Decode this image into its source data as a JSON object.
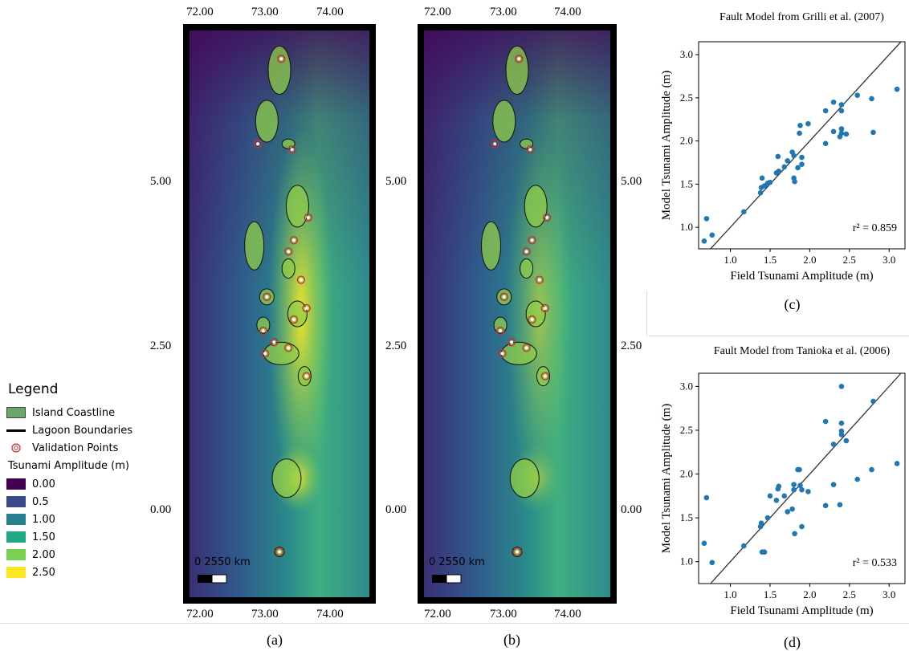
{
  "legend": {
    "title": "Legend",
    "items": [
      {
        "label": "Island Coastline",
        "color": "#6aa86a"
      },
      {
        "label": "Lagoon Boundaries",
        "color": "#000000"
      },
      {
        "label": "Validation Points",
        "color": "#d62728"
      }
    ],
    "scale_title": "Tsunami Amplitude (m)",
    "scale": [
      {
        "label": "0.00",
        "color": "#440154"
      },
      {
        "label": "0.5",
        "color": "#3b4a8a"
      },
      {
        "label": "1.00",
        "color": "#26808e"
      },
      {
        "label": "1.50",
        "color": "#22a884"
      },
      {
        "label": "2.00",
        "color": "#7ad151"
      },
      {
        "label": "2.50",
        "color": "#fde725"
      }
    ]
  },
  "maps": [
    {
      "label": "(a)",
      "lon_ticks": [
        "72.00",
        "73.00",
        "74.00"
      ],
      "lat_ticks": [
        "5.00",
        "2.50",
        "0.00"
      ],
      "scalebar": "0 2550 km"
    },
    {
      "label": "(b)",
      "lon_ticks": [
        "72.00",
        "73.00",
        "74.00"
      ],
      "lat_ticks_left": [
        "5.00",
        "2.50",
        "0.00"
      ],
      "lat_ticks_right": [
        "5.00",
        "2.50",
        "0.00"
      ],
      "scalebar": "0 2550 km"
    }
  ],
  "chart_data": [
    {
      "type": "scatter",
      "title": "Fault Model from Grilli et al. (2007)",
      "xlabel": "Field Tsunami Amplitude (m)",
      "ylabel": "Model Tsunami Amplitude (m)",
      "panel_label": "(c)",
      "annotation": "r² = 0.859",
      "xlim": [
        0.6,
        3.2
      ],
      "ylim": [
        0.75,
        3.15
      ],
      "xticks": [
        "1.0",
        "1.5",
        "2.0",
        "2.5",
        "3.0"
      ],
      "yticks": [
        "1.0",
        "1.5",
        "2.0",
        "2.5",
        "3.0"
      ],
      "marker_color": "#1f77b4",
      "points": [
        [
          0.67,
          0.84
        ],
        [
          0.7,
          1.1
        ],
        [
          0.77,
          0.91
        ],
        [
          1.17,
          1.18
        ],
        [
          1.38,
          1.4
        ],
        [
          1.39,
          1.46
        ],
        [
          1.4,
          1.57
        ],
        [
          1.43,
          1.48
        ],
        [
          1.47,
          1.51
        ],
        [
          1.5,
          1.52
        ],
        [
          1.58,
          1.63
        ],
        [
          1.6,
          1.82
        ],
        [
          1.61,
          1.65
        ],
        [
          1.68,
          1.7
        ],
        [
          1.72,
          1.77
        ],
        [
          1.78,
          1.87
        ],
        [
          1.8,
          1.83
        ],
        [
          1.8,
          1.57
        ],
        [
          1.81,
          1.53
        ],
        [
          1.85,
          1.69
        ],
        [
          1.87,
          2.09
        ],
        [
          1.88,
          2.18
        ],
        [
          1.9,
          1.73
        ],
        [
          1.9,
          1.81
        ],
        [
          1.98,
          2.2
        ],
        [
          2.2,
          1.97
        ],
        [
          2.2,
          2.35
        ],
        [
          2.3,
          2.45
        ],
        [
          2.3,
          2.11
        ],
        [
          2.38,
          2.05
        ],
        [
          2.4,
          2.42
        ],
        [
          2.4,
          2.35
        ],
        [
          2.4,
          2.14
        ],
        [
          2.4,
          2.09
        ],
        [
          2.46,
          2.08
        ],
        [
          2.6,
          2.53
        ],
        [
          2.78,
          2.49
        ],
        [
          2.8,
          2.1
        ],
        [
          3.1,
          2.6
        ]
      ]
    },
    {
      "type": "scatter",
      "title": "Fault Model from Tanioka et al. (2006)",
      "xlabel": "Field Tsunami Amplitude (m)",
      "ylabel": "Model Tsunami Amplitude (m)",
      "panel_label": "(d)",
      "annotation": "r² = 0.533",
      "xlim": [
        0.6,
        3.2
      ],
      "ylim": [
        0.75,
        3.15
      ],
      "xticks": [
        "1.0",
        "1.5",
        "2.0",
        "2.5",
        "3.0"
      ],
      "yticks": [
        "1.0",
        "1.5",
        "2.0",
        "2.5",
        "3.0"
      ],
      "marker_color": "#1f77b4",
      "points": [
        [
          0.67,
          1.21
        ],
        [
          0.7,
          1.73
        ],
        [
          0.77,
          0.99
        ],
        [
          1.17,
          1.18
        ],
        [
          1.38,
          1.4
        ],
        [
          1.39,
          1.44
        ],
        [
          1.4,
          1.11
        ],
        [
          1.43,
          1.11
        ],
        [
          1.47,
          1.5
        ],
        [
          1.5,
          1.75
        ],
        [
          1.58,
          1.7
        ],
        [
          1.6,
          1.83
        ],
        [
          1.61,
          1.86
        ],
        [
          1.68,
          1.75
        ],
        [
          1.72,
          1.57
        ],
        [
          1.78,
          1.6
        ],
        [
          1.8,
          1.88
        ],
        [
          1.8,
          1.82
        ],
        [
          1.81,
          1.32
        ],
        [
          1.85,
          2.05
        ],
        [
          1.87,
          2.05
        ],
        [
          1.88,
          1.87
        ],
        [
          1.9,
          1.4
        ],
        [
          1.9,
          1.82
        ],
        [
          1.98,
          1.8
        ],
        [
          2.2,
          1.64
        ],
        [
          2.2,
          2.6
        ],
        [
          2.3,
          2.34
        ],
        [
          2.3,
          1.88
        ],
        [
          2.38,
          1.65
        ],
        [
          2.4,
          3.0
        ],
        [
          2.4,
          2.58
        ],
        [
          2.4,
          2.49
        ],
        [
          2.4,
          2.45
        ],
        [
          2.46,
          2.38
        ],
        [
          2.6,
          1.94
        ],
        [
          2.78,
          2.05
        ],
        [
          2.8,
          2.83
        ],
        [
          3.1,
          2.12
        ]
      ]
    }
  ]
}
